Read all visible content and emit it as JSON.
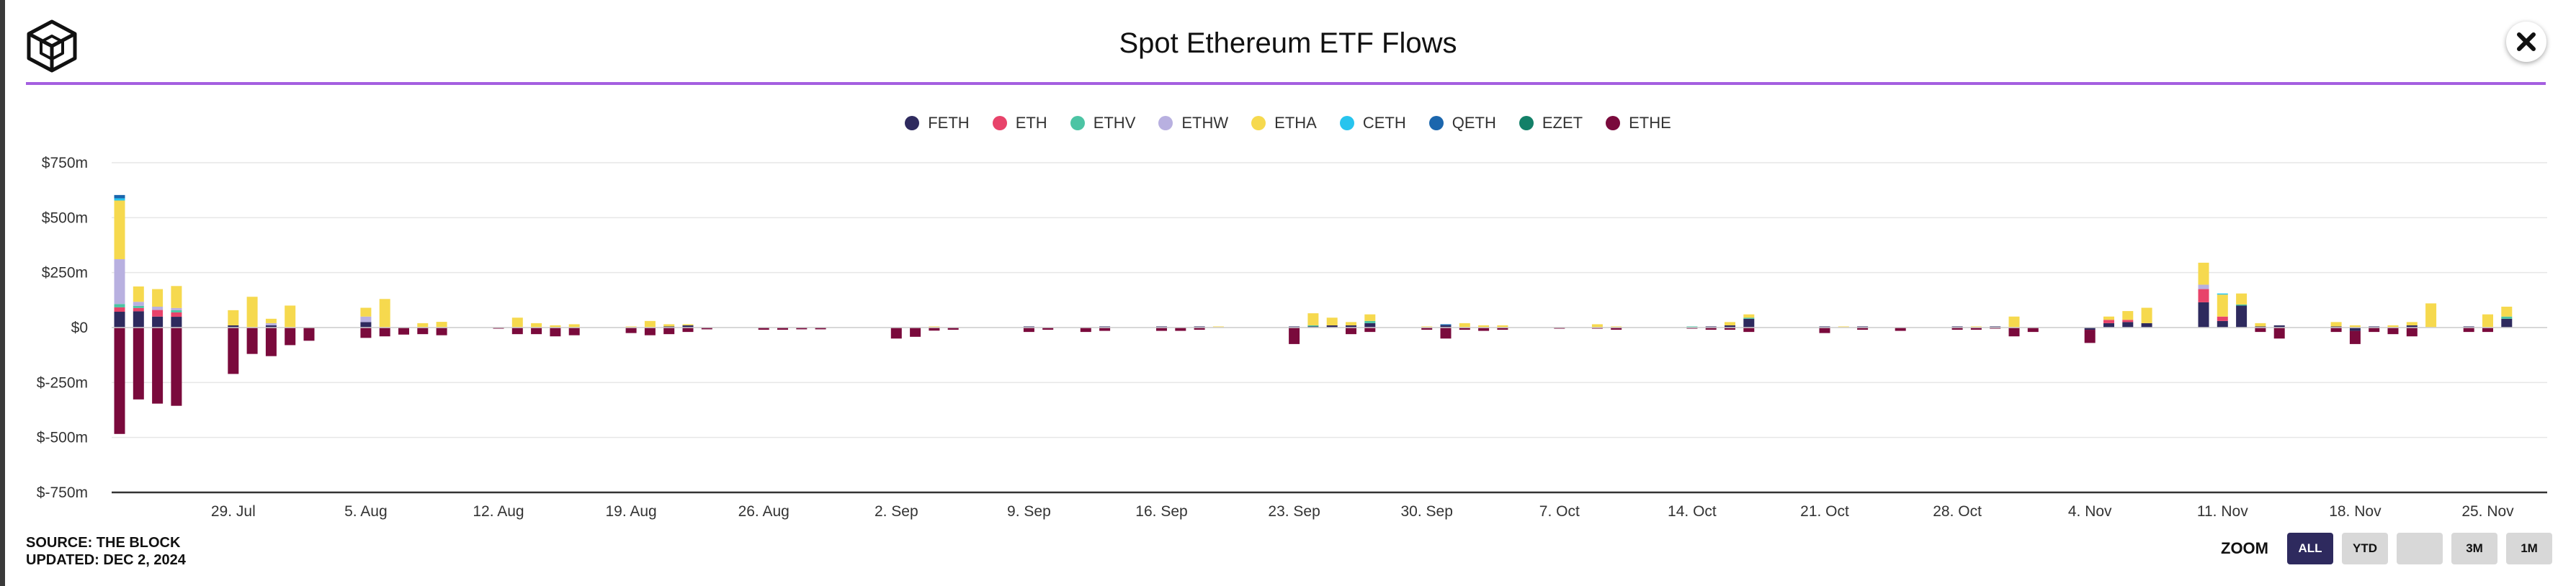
{
  "header": {
    "title": "Spot Ethereum ETF Flows",
    "close_icon": "close-icon",
    "logo_icon": "the-block-cube-logo-icon"
  },
  "footer": {
    "source": "SOURCE: THE BLOCK",
    "updated": "UPDATED: DEC 2, 2024"
  },
  "zoom": {
    "label": "ZOOM",
    "buttons": [
      "ALL",
      "YTD",
      "",
      "3M",
      "1M"
    ],
    "active": "ALL"
  },
  "colors": {
    "accent": "#a45fe0",
    "zoom_active": "#2e2a5e"
  },
  "chart_data": {
    "type": "bar",
    "stacked": true,
    "title": "Spot Ethereum ETF Flows",
    "xlabel": "",
    "ylabel": "",
    "ylim": [
      -750,
      750
    ],
    "y_unit": "$m",
    "y_ticks": [
      750,
      500,
      250,
      0,
      -250,
      -500,
      -750
    ],
    "y_tick_labels": [
      "$750m",
      "$500m",
      "$250m",
      "$0",
      "$-250m",
      "$-500m",
      "$-750m"
    ],
    "x_tick_labels": [
      "29. Jul",
      "5. Aug",
      "12. Aug",
      "19. Aug",
      "26. Aug",
      "2. Sep",
      "9. Sep",
      "16. Sep",
      "23. Sep",
      "30. Sep",
      "7. Oct",
      "14. Oct",
      "21. Oct",
      "28. Oct",
      "4. Nov",
      "11. Nov",
      "18. Nov",
      "25. Nov"
    ],
    "x_tick_day_index": [
      6,
      13,
      20,
      27,
      34,
      41,
      48,
      55,
      62,
      69,
      76,
      83,
      90,
      97,
      104,
      111,
      118,
      125
    ],
    "x_range_days": [
      0,
      131
    ],
    "series": [
      {
        "name": "FETH",
        "color": "#2e2a5e"
      },
      {
        "name": "ETH",
        "color": "#e8436a"
      },
      {
        "name": "ETHV",
        "color": "#4cc4a4"
      },
      {
        "name": "ETHW",
        "color": "#b8b0e0"
      },
      {
        "name": "ETHA",
        "color": "#f6d94e"
      },
      {
        "name": "CETH",
        "color": "#27c4ee"
      },
      {
        "name": "QETH",
        "color": "#1b66ad"
      },
      {
        "name": "EZET",
        "color": "#138068"
      },
      {
        "name": "ETHE",
        "color": "#7a0a3c"
      }
    ],
    "days": [
      {
        "d": 0,
        "ETHE": -484,
        "FETH": 72,
        "ETH": 20,
        "ETHV": 15,
        "ETHW": 204,
        "ETHA": 267,
        "CETH": 10,
        "QETH": 15
      },
      {
        "d": 1,
        "ETHE": -327,
        "FETH": 74,
        "ETH": 15,
        "ETHV": 10,
        "ETHW": 18,
        "ETHA": 70
      },
      {
        "d": 2,
        "ETHE": -346,
        "FETH": 50,
        "ETH": 30,
        "ETHW": 15,
        "ETHA": 80
      },
      {
        "d": 3,
        "ETHE": -356,
        "FETH": 49,
        "ETH": 20,
        "ETHV": 10,
        "ETHW": 10,
        "ETHA": 100
      },
      {
        "d": 6,
        "ETHE": -211,
        "FETH": 10,
        "ETHA": 69
      },
      {
        "d": 7,
        "ETHE": -120,
        "ETHA": 140
      },
      {
        "d": 8,
        "ETHE": -130,
        "FETH": 10,
        "ETHW": 10,
        "ETHA": 20
      },
      {
        "d": 9,
        "ETHE": -80,
        "ETHA": 100
      },
      {
        "d": 10,
        "ETHE": -60
      },
      {
        "d": 13,
        "ETHE": -47,
        "FETH": 25,
        "ETHW": 25,
        "ETHA": 40
      },
      {
        "d": 14,
        "ETHE": -40,
        "ETHA": 130
      },
      {
        "d": 15,
        "ETHE": -32
      },
      {
        "d": 16,
        "ETHE": -30,
        "ETHA": 20
      },
      {
        "d": 17,
        "ETHE": -35,
        "ETHA": 26
      },
      {
        "d": 20,
        "ETHE": -5
      },
      {
        "d": 21,
        "ETHE": -30,
        "ETHA": 45
      },
      {
        "d": 22,
        "ETHE": -30,
        "ETHA": 20
      },
      {
        "d": 23,
        "ETHE": -40,
        "ETHA": 10
      },
      {
        "d": 24,
        "ETHE": -35,
        "ETHA": 15
      },
      {
        "d": 27,
        "ETHE": -25,
        "ETHA": 5
      },
      {
        "d": 28,
        "ETHE": -35,
        "ETHA": 30
      },
      {
        "d": 29,
        "ETHE": -30,
        "FETH": 5,
        "ETHA": 10
      },
      {
        "d": 30,
        "ETHE": -20,
        "FETH": 10,
        "ETHA": 5
      },
      {
        "d": 31,
        "ETHE": -8
      },
      {
        "d": 34,
        "ETHE": -10
      },
      {
        "d": 35,
        "ETHE": -10
      },
      {
        "d": 36,
        "ETHE": -8
      },
      {
        "d": 37,
        "ETHE": -8
      },
      {
        "d": 41,
        "ETHE": -50
      },
      {
        "d": 42,
        "ETHE": -42
      },
      {
        "d": 43,
        "ETHE": -14,
        "ETHA": 5
      },
      {
        "d": 44,
        "ETHE": -10
      },
      {
        "d": 48,
        "ETHE": -20,
        "FETH": 5
      },
      {
        "d": 49,
        "ETHE": -10
      },
      {
        "d": 51,
        "ETHE": -20
      },
      {
        "d": 52,
        "ETHE": -15,
        "FETH": 5
      },
      {
        "d": 55,
        "ETHE": -15,
        "FETH": 5
      },
      {
        "d": 56,
        "ETHE": -15
      },
      {
        "d": 57,
        "ETHE": -10,
        "FETH": 5
      },
      {
        "d": 58,
        "ETHA": 5
      },
      {
        "d": 62,
        "ETHE": -75,
        "FETH": 5
      },
      {
        "d": 63,
        "FETH": 5,
        "ETHA": 55,
        "ETHV": 5
      },
      {
        "d": 64,
        "FETH": 10,
        "ETHA": 35
      },
      {
        "d": 65,
        "ETHE": -30,
        "FETH": 10,
        "ETHA": 15
      },
      {
        "d": 66,
        "ETHE": -20,
        "FETH": 20,
        "ETHA": 30,
        "ETHV": 10
      },
      {
        "d": 69,
        "ETHE": -10,
        "ETHA": 5
      },
      {
        "d": 70,
        "ETHE": -50,
        "FETH": 10,
        "QETH": 5
      },
      {
        "d": 71,
        "ETHE": -10,
        "ETHA": 20
      },
      {
        "d": 72,
        "ETHE": -15,
        "ETHA": 10
      },
      {
        "d": 73,
        "ETHE": -10,
        "ETHA": 10
      },
      {
        "d": 76,
        "ETHE": -5
      },
      {
        "d": 78,
        "ETHE": -5,
        "ETHA": 15
      },
      {
        "d": 79,
        "ETHE": -10,
        "ETHA": 5
      },
      {
        "d": 83,
        "ETHE": -5,
        "ETHV": 5
      },
      {
        "d": 84,
        "ETHE": -10,
        "FETH": 5
      },
      {
        "d": 85,
        "ETHE": -10,
        "FETH": 10,
        "ETHA": 15
      },
      {
        "d": 86,
        "ETHE": -20,
        "FETH": 40,
        "ETHA": 15,
        "ETHV": 5
      },
      {
        "d": 90,
        "ETHE": -25,
        "FETH": 5
      },
      {
        "d": 91,
        "ETHA": 5
      },
      {
        "d": 92,
        "ETHE": -10,
        "FETH": 5
      },
      {
        "d": 94,
        "ETHE": -15
      },
      {
        "d": 97,
        "ETHE": -10,
        "FETH": 5
      },
      {
        "d": 98,
        "ETHE": -10,
        "ETHA": 5
      },
      {
        "d": 99,
        "ETHE": -5,
        "FETH": 5
      },
      {
        "d": 100,
        "ETHE": -40,
        "ETHA": 50
      },
      {
        "d": 101,
        "ETHE": -20
      },
      {
        "d": 104,
        "ETHE": -60,
        "FETH": -10
      },
      {
        "d": 105,
        "FETH": 20,
        "ETH": 15,
        "ETHA": 15
      },
      {
        "d": 106,
        "FETH": 25,
        "ETH": 10,
        "ETHA": 40
      },
      {
        "d": 107,
        "FETH": 20,
        "ETHA": 70
      },
      {
        "d": 110,
        "FETH": 115,
        "ETH": 60,
        "ETHW": 20,
        "ETHA": 100
      },
      {
        "d": 111,
        "FETH": 30,
        "ETH": 20,
        "ETHA": 100,
        "CETH": 5
      },
      {
        "d": 112,
        "FETH": 100,
        "ETHA": 50,
        "ETHV": 5
      },
      {
        "d": 113,
        "ETHE": -20,
        "FETH": 5,
        "ETHA": 15
      },
      {
        "d": 114,
        "ETHE": -50,
        "FETH": 10
      },
      {
        "d": 117,
        "ETHE": -20,
        "ETHA": 20,
        "FETH": 5
      },
      {
        "d": 118,
        "ETHE": -60,
        "FETH": -15,
        "ETHA": 10
      },
      {
        "d": 119,
        "ETHE": -20,
        "FETH": 5
      },
      {
        "d": 120,
        "ETHE": -30,
        "ETHA": 10
      },
      {
        "d": 121,
        "ETHE": -40,
        "FETH": 10,
        "ETHA": 15
      },
      {
        "d": 122,
        "ETHA": 110
      },
      {
        "d": 124,
        "ETHE": -20,
        "FETH": 5
      },
      {
        "d": 125,
        "ETHE": -20,
        "ETHA": 60
      },
      {
        "d": 126,
        "FETH": 40,
        "ETHA": 45,
        "ETHV": 10
      }
    ]
  }
}
